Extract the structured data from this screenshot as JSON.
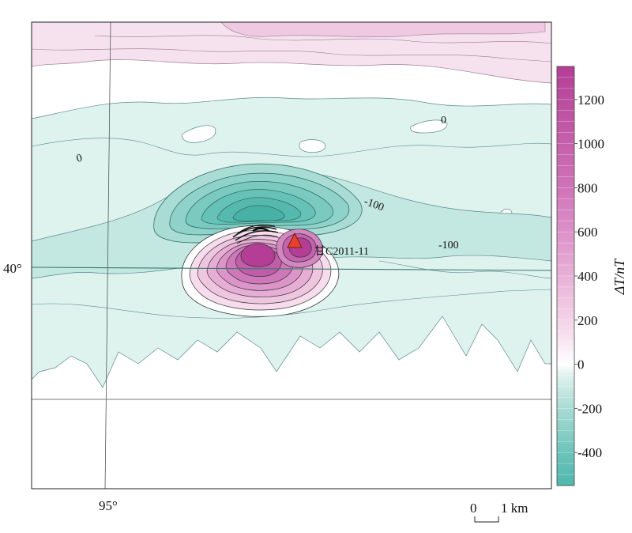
{
  "map": {
    "latitude_label": "40°",
    "longitude_label": "95°",
    "contour_labels": [
      "0",
      "0",
      "-100",
      "-100"
    ],
    "station": {
      "name": "甘C2011-11",
      "marker_color": "#e8412a"
    },
    "scale_bar": {
      "start": "0",
      "end": "1 km"
    }
  },
  "colorbar": {
    "title": "ΔT/nT",
    "ticks": [
      "1200",
      "1000",
      "800",
      "600",
      "400",
      "200",
      "0",
      "-200",
      "-400"
    ],
    "stops": {
      "min": -550,
      "max": 1350,
      "colors": [
        {
          "value": -550,
          "color": "#4fb8ad"
        },
        {
          "value": -400,
          "color": "#6cc4ba"
        },
        {
          "value": -200,
          "color": "#a8dcd4"
        },
        {
          "value": -50,
          "color": "#dff2ee"
        },
        {
          "value": 0,
          "color": "#ffffff"
        },
        {
          "value": 150,
          "color": "#f6dcec"
        },
        {
          "value": 400,
          "color": "#e8b0d6"
        },
        {
          "value": 800,
          "color": "#d073b8"
        },
        {
          "value": 1350,
          "color": "#b43e96"
        }
      ]
    }
  }
}
